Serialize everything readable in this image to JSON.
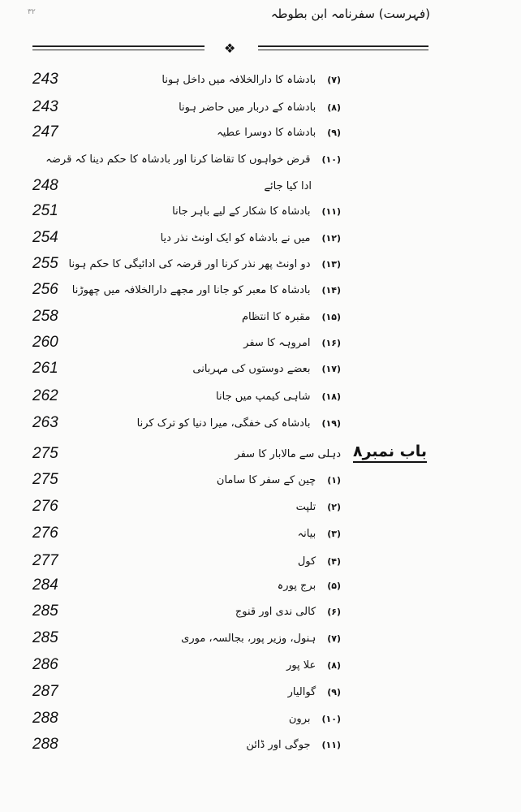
{
  "header": {
    "title": "(فہرست) سفرنامہ ابن بطوطہ",
    "page_mark": "۳۲",
    "ornament": "❖"
  },
  "entries": [
    {
      "num": "(۷)",
      "text": "بادشاہ کا دارالخلافہ میں داخل ہونا",
      "page": "243"
    },
    {
      "num": "(۸)",
      "text": "بادشاہ کے دربار میں حاضر ہونا",
      "page": "243"
    },
    {
      "num": "(۹)",
      "text": "بادشاہ کا دوسرا عطیہ",
      "page": "247"
    },
    {
      "num": "(۱۰)",
      "text": "قرض خواہوں کا تقاضا کرنا اور بادشاہ کا حکم دینا کہ قرضہ",
      "page": ""
    },
    {
      "num": "",
      "text": "ادا کیا جائے",
      "page": "248"
    },
    {
      "num": "(۱۱)",
      "text": "بادشاہ کا شکار کے لیے باہر جانا",
      "page": "251"
    },
    {
      "num": "(۱۲)",
      "text": "میں نے بادشاہ کو ایک اونٹ نذر دیا",
      "page": "254"
    },
    {
      "num": "(۱۳)",
      "text": "دو اونٹ پھر نذر کرنا اور قرضہ کی ادائیگی کا حکم ہونا",
      "page": "255"
    },
    {
      "num": "(۱۴)",
      "text": "بادشاہ کا معبر کو جانا اور مجھے دارالخلافہ میں چھوڑنا",
      "page": "256"
    },
    {
      "num": "(۱۵)",
      "text": "مقبرہ کا انتظام",
      "page": "258"
    },
    {
      "num": "(۱۶)",
      "text": "امروہہ کا سفر",
      "page": "260"
    },
    {
      "num": "(۱۷)",
      "text": "بعضے دوستوں کی مہربانی",
      "page": "261"
    },
    {
      "num": "(۱۸)",
      "text": "شاہی کیمپ میں جانا",
      "page": "262"
    },
    {
      "num": "(۱۹)",
      "text": "بادشاہ کی خفگی، میرا دنیا کو ترک کرنا",
      "page": "263"
    },
    {
      "num": "",
      "text": "دہلی سے مالابار کا سفر",
      "page": "275",
      "chapter": "باب نمبر۸"
    },
    {
      "num": "(۱)",
      "text": "چین کے سفر کا سامان",
      "page": "275"
    },
    {
      "num": "(۲)",
      "text": "تلپت",
      "page": "276"
    },
    {
      "num": "(۳)",
      "text": "بیانہ",
      "page": "276"
    },
    {
      "num": "(۴)",
      "text": "کول",
      "page": "277"
    },
    {
      "num": "(۵)",
      "text": "برج پورہ",
      "page": "284"
    },
    {
      "num": "(۶)",
      "text": "کالی ندی اور قنوج",
      "page": "285"
    },
    {
      "num": "(۷)",
      "text": "ہنول، وزیر پور، بجالسہ، موری",
      "page": "285"
    },
    {
      "num": "(۸)",
      "text": "علا پور",
      "page": "286"
    },
    {
      "num": "(۹)",
      "text": "گوالیار",
      "page": "287"
    },
    {
      "num": "(۱۰)",
      "text": "برون",
      "page": "288"
    },
    {
      "num": "(۱۱)",
      "text": "جوگی اور ڈائن",
      "page": "288"
    }
  ]
}
